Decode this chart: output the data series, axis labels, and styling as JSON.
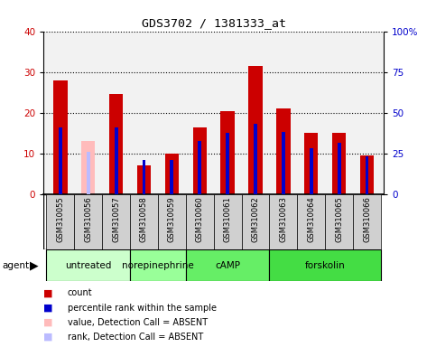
{
  "title": "GDS3702 / 1381333_at",
  "samples": [
    "GSM310055",
    "GSM310056",
    "GSM310057",
    "GSM310058",
    "GSM310059",
    "GSM310060",
    "GSM310061",
    "GSM310062",
    "GSM310063",
    "GSM310064",
    "GSM310065",
    "GSM310066"
  ],
  "count_values": [
    28,
    0,
    24.5,
    7,
    10,
    16.5,
    20.5,
    31.5,
    21,
    15,
    15,
    9.5
  ],
  "percentile_values": [
    41.0,
    0,
    41.0,
    21.0,
    21.0,
    32.5,
    37.5,
    43.5,
    38.5,
    28.5,
    31.5,
    23.5
  ],
  "absent_count": [
    0,
    13,
    0,
    0,
    0,
    0,
    0,
    0,
    0,
    0,
    0,
    0
  ],
  "absent_rank": [
    0,
    26,
    0,
    0,
    0,
    0,
    0,
    0,
    0,
    0,
    0,
    0
  ],
  "is_absent": [
    false,
    true,
    false,
    false,
    false,
    false,
    false,
    false,
    false,
    false,
    false,
    false
  ],
  "agent_groups": [
    {
      "label": "untreated",
      "start": 0,
      "end": 3,
      "color": "#ccffcc"
    },
    {
      "label": "norepinephrine",
      "start": 3,
      "end": 5,
      "color": "#99ff99"
    },
    {
      "label": "cAMP",
      "start": 5,
      "end": 8,
      "color": "#66ee66"
    },
    {
      "label": "forskolin",
      "start": 8,
      "end": 12,
      "color": "#44dd44"
    }
  ],
  "ylim_left": [
    0,
    40
  ],
  "ylim_right": [
    0,
    100
  ],
  "yticks_left": [
    0,
    10,
    20,
    30,
    40
  ],
  "yticks_right": [
    0,
    25,
    50,
    75,
    100
  ],
  "ytick_labels_right": [
    "0",
    "25",
    "50",
    "75",
    "100%"
  ],
  "color_count": "#cc0000",
  "color_absent_count": "#ffbbbb",
  "color_percentile": "#0000cc",
  "color_absent_rank": "#bbbbff",
  "background_plot": "#f2f2f2",
  "background_xticklabels": "#d0d0d0",
  "bar_width": 0.5,
  "grid_color": "black",
  "grid_linestyle": "dotted",
  "figsize": [
    4.83,
    3.84
  ],
  "dpi": 100
}
